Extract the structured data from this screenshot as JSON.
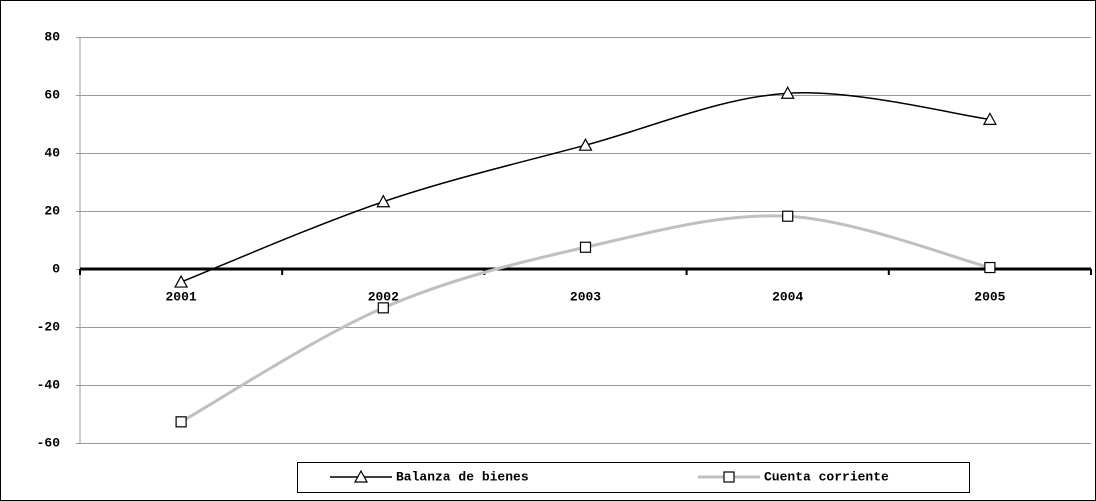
{
  "chart_data": {
    "type": "line",
    "categories": [
      "2001",
      "2002",
      "2003",
      "2004",
      "2005"
    ],
    "series": [
      {
        "name": "Balanza de bienes",
        "color": "#000000",
        "marker": "triangle",
        "values": [
          -4.5,
          23.2,
          42.7,
          60.6,
          51.6
        ]
      },
      {
        "name": "Cuenta corriente",
        "color": "#c0c0c0",
        "marker": "square",
        "values": [
          -52.7,
          -13.4,
          7.5,
          18.2,
          0.5
        ]
      }
    ],
    "ylim": [
      -60,
      80
    ],
    "yticks": [
      -60,
      -40,
      -20,
      0,
      20,
      40,
      60,
      80
    ],
    "grid": true,
    "legend": "bottom"
  }
}
